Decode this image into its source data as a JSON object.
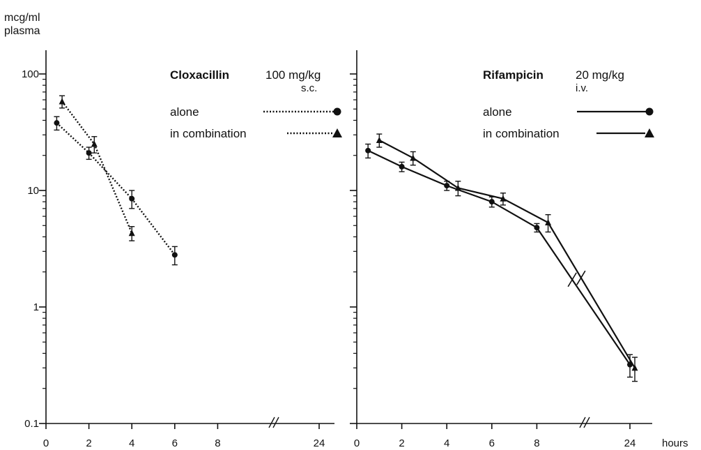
{
  "chart_data": [
    {
      "type": "line",
      "ylabel": [
        "mcg/ml",
        "plasma"
      ],
      "xlabel": "",
      "y_scale": "log",
      "ylim": [
        0.1,
        150
      ],
      "y_ticks": [
        {
          "value": 100,
          "label": "100"
        },
        {
          "value": 10,
          "label": "10"
        },
        {
          "value": 1,
          "label": "1"
        },
        {
          "value": 0.1,
          "label": "0.1"
        }
      ],
      "x_ticks": [
        "0",
        "2",
        "4",
        "6",
        "8",
        "24"
      ],
      "x_axis_break": "//",
      "legend": {
        "drug": "Cloxacillin",
        "dose": "100 mg/kg",
        "route": "s.c.",
        "line_style": "dotted",
        "entries": [
          {
            "label": "alone",
            "marker": "circle"
          },
          {
            "label": "in combination",
            "marker": "triangle"
          }
        ]
      },
      "series": [
        {
          "name": "alone",
          "marker": "circle",
          "line_style": "dotted",
          "points": [
            {
              "x": 0.5,
              "y": 38,
              "err": 5
            },
            {
              "x": 2,
              "y": 21,
              "err": 2.5
            },
            {
              "x": 4,
              "y": 8.5,
              "err": 1.5
            },
            {
              "x": 6,
              "y": 2.8,
              "err": 0.5
            }
          ]
        },
        {
          "name": "in combination",
          "marker": "triangle",
          "line_style": "dotted",
          "points": [
            {
              "x": 0.75,
              "y": 58,
              "err": 7
            },
            {
              "x": 2.25,
              "y": 25,
              "err": 4
            },
            {
              "x": 4,
              "y": 4.3,
              "err": 0.6
            }
          ]
        }
      ]
    },
    {
      "type": "line",
      "xlabel": "hours",
      "y_scale": "log",
      "ylim": [
        0.1,
        150
      ],
      "x_ticks": [
        "0",
        "2",
        "4",
        "6",
        "8",
        "24"
      ],
      "x_axis_break": "//",
      "legend": {
        "drug": "Rifampicin",
        "dose": "20 mg/kg",
        "route": "i.v.",
        "line_style": "solid",
        "entries": [
          {
            "label": "alone",
            "marker": "circle"
          },
          {
            "label": "in combination",
            "marker": "triangle"
          }
        ]
      },
      "series": [
        {
          "name": "alone",
          "marker": "circle",
          "line_style": "solid",
          "points": [
            {
              "x": 0.5,
              "y": 22,
              "err": 3
            },
            {
              "x": 2,
              "y": 16,
              "err": 1.5
            },
            {
              "x": 4,
              "y": 11,
              "err": 1
            },
            {
              "x": 6,
              "y": 8,
              "err": 0.8
            },
            {
              "x": 8,
              "y": 4.8,
              "err": 0.4
            },
            {
              "x": 24,
              "y": 0.32,
              "err": 0.07
            }
          ]
        },
        {
          "name": "in combination",
          "marker": "triangle",
          "line_style": "solid",
          "points": [
            {
              "x": 1,
              "y": 27,
              "err": 3.5
            },
            {
              "x": 2.5,
              "y": 19,
              "err": 2.5
            },
            {
              "x": 4.5,
              "y": 10.5,
              "err": 1.5
            },
            {
              "x": 6.5,
              "y": 8.5,
              "err": 1
            },
            {
              "x": 8.5,
              "y": 5.3,
              "err": 0.9
            },
            {
              "x": 24.5,
              "y": 0.3,
              "err": 0.07
            }
          ]
        }
      ]
    }
  ]
}
